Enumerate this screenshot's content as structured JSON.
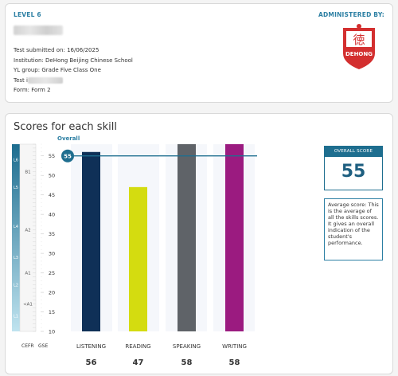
{
  "header": {
    "level": "LEVEL 6",
    "administered_by": "ADMINISTERED BY:",
    "logo_text": "DEHONG"
  },
  "test_info": {
    "submitted": "Test submitted on: 16/06/2025",
    "institution": "Institution: DeHong Beijing Chinese School",
    "yl_group": "YL group: Grade Five Class One",
    "test_label": "Test i",
    "form": "Form: Form 2"
  },
  "scores": {
    "title": "Scores for each skill",
    "overall_label": "Overall",
    "overall_score_label": "OVERALL SCORE",
    "overall_score": "55",
    "average_text": "Average score: This is the average of all the skills scores. It gives an overall indication of the student's performance.",
    "axis_labels": {
      "cefr": "CEFR",
      "gse": "GSE"
    }
  },
  "colors": {
    "accent": "#2c7fa3",
    "listening": "#0f3057",
    "reading": "#d4dc10",
    "speaking": "#5f6368",
    "writing": "#9b1b80"
  },
  "chart_data": {
    "type": "bar",
    "categories": [
      "LISTENING",
      "READING",
      "SPEAKING",
      "WRITING"
    ],
    "values": [
      56,
      47,
      58,
      58
    ],
    "overall": 55,
    "ylim": [
      10,
      58
    ],
    "gse_ticks": [
      10,
      15,
      20,
      25,
      30,
      35,
      40,
      45,
      50,
      55
    ],
    "cefr_labels": [
      {
        "label": "B1",
        "value": 51
      },
      {
        "label": "A2",
        "value": 36
      },
      {
        "label": "A1",
        "value": 25
      },
      {
        "label": "<A1",
        "value": 17
      }
    ],
    "level_labels": [
      {
        "label": "L6",
        "value": 54
      },
      {
        "label": "L5",
        "value": 47
      },
      {
        "label": "L4",
        "value": 37
      },
      {
        "label": "L3",
        "value": 29
      },
      {
        "label": "L2",
        "value": 22
      },
      {
        "label": "L1",
        "value": 14
      }
    ]
  }
}
